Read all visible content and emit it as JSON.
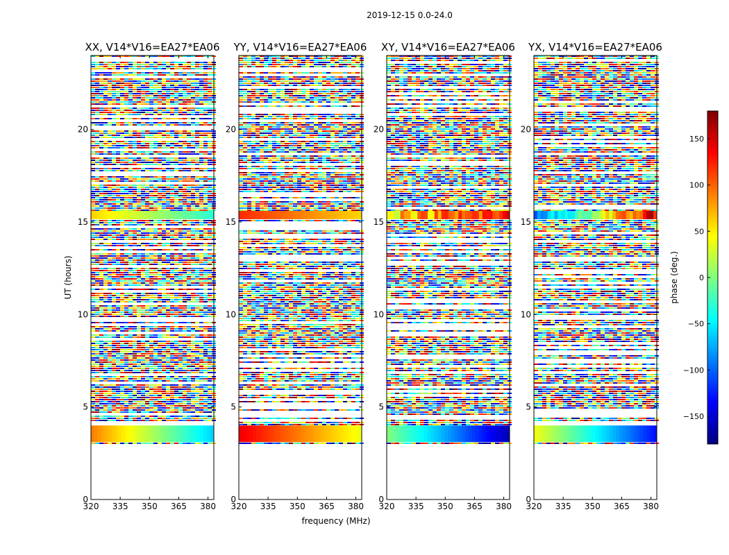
{
  "figure": {
    "suptitle": "2019-12-15 0.0-24.0",
    "ylabel": "UT (hours)",
    "xlabel": "frequency (MHz)"
  },
  "colorbar": {
    "label": "phase (deg.)",
    "range": [
      -180,
      180
    ],
    "ticks": [
      150,
      100,
      50,
      0,
      -50,
      -100,
      -150
    ],
    "tick_labels": [
      "150",
      "100",
      "50",
      "0",
      "−50",
      "−100",
      "−150"
    ],
    "colormap": [
      "#00007f",
      "#0000ff",
      "#007fff",
      "#00ffff",
      "#7fff7f",
      "#ffff00",
      "#ff7f00",
      "#ff0000",
      "#7f0000"
    ]
  },
  "chart_data": [
    {
      "type": "heatmap",
      "title": "XX, V14*V16=EA27*EA06",
      "xlim": [
        320,
        383
      ],
      "ylim": [
        0,
        24
      ],
      "xticks": [
        320,
        335,
        350,
        365,
        380
      ],
      "yticks": [
        0,
        5,
        10,
        15,
        20
      ],
      "value": "phase (deg.)",
      "bands": [
        {
          "t": [
            3.1,
            4.0
          ],
          "phase_start": 90,
          "phase_end": -60,
          "pattern": "smooth"
        },
        {
          "t": [
            15.15,
            15.6
          ],
          "phase_start": 60,
          "phase_end": -30,
          "pattern": "smooth"
        }
      ]
    },
    {
      "type": "heatmap",
      "title": "YY, V14*V16=EA27*EA06",
      "xlim": [
        320,
        383
      ],
      "ylim": [
        0,
        24
      ],
      "xticks": [
        320,
        335,
        350,
        365,
        380
      ],
      "yticks": [
        0,
        5,
        10,
        15,
        20
      ],
      "value": "phase (deg.)",
      "bands": [
        {
          "t": [
            3.1,
            4.0
          ],
          "phase_start": 140,
          "phase_end": 40,
          "pattern": "smooth"
        },
        {
          "t": [
            15.15,
            15.6
          ],
          "phase_start": 120,
          "phase_end": 60,
          "pattern": "smooth"
        }
      ]
    },
    {
      "type": "heatmap",
      "title": "XY, V14*V16=EA27*EA06",
      "xlim": [
        320,
        383
      ],
      "ylim": [
        0,
        24
      ],
      "xticks": [
        320,
        335,
        350,
        365,
        380
      ],
      "yticks": [
        0,
        5,
        10,
        15,
        20
      ],
      "value": "phase (deg.)",
      "bands": [
        {
          "t": [
            3.1,
            4.0
          ],
          "phase_start": 0,
          "phase_end": -160,
          "pattern": "smooth"
        },
        {
          "t": [
            15.15,
            15.6
          ],
          "phase_start": 60,
          "phase_end": 120,
          "pattern": "noisy"
        }
      ]
    },
    {
      "type": "heatmap",
      "title": "YX, V14*V16=EA27*EA06",
      "xlim": [
        320,
        383
      ],
      "ylim": [
        0,
        24
      ],
      "xticks": [
        320,
        335,
        350,
        365,
        380
      ],
      "yticks": [
        0,
        5,
        10,
        15,
        20
      ],
      "value": "phase (deg.)",
      "bands": [
        {
          "t": [
            3.1,
            4.0
          ],
          "phase_start": 40,
          "phase_end": -130,
          "pattern": "smooth"
        },
        {
          "t": [
            15.15,
            15.6
          ],
          "phase_start": -120,
          "phase_end": 150,
          "pattern": "noisy"
        }
      ]
    }
  ]
}
